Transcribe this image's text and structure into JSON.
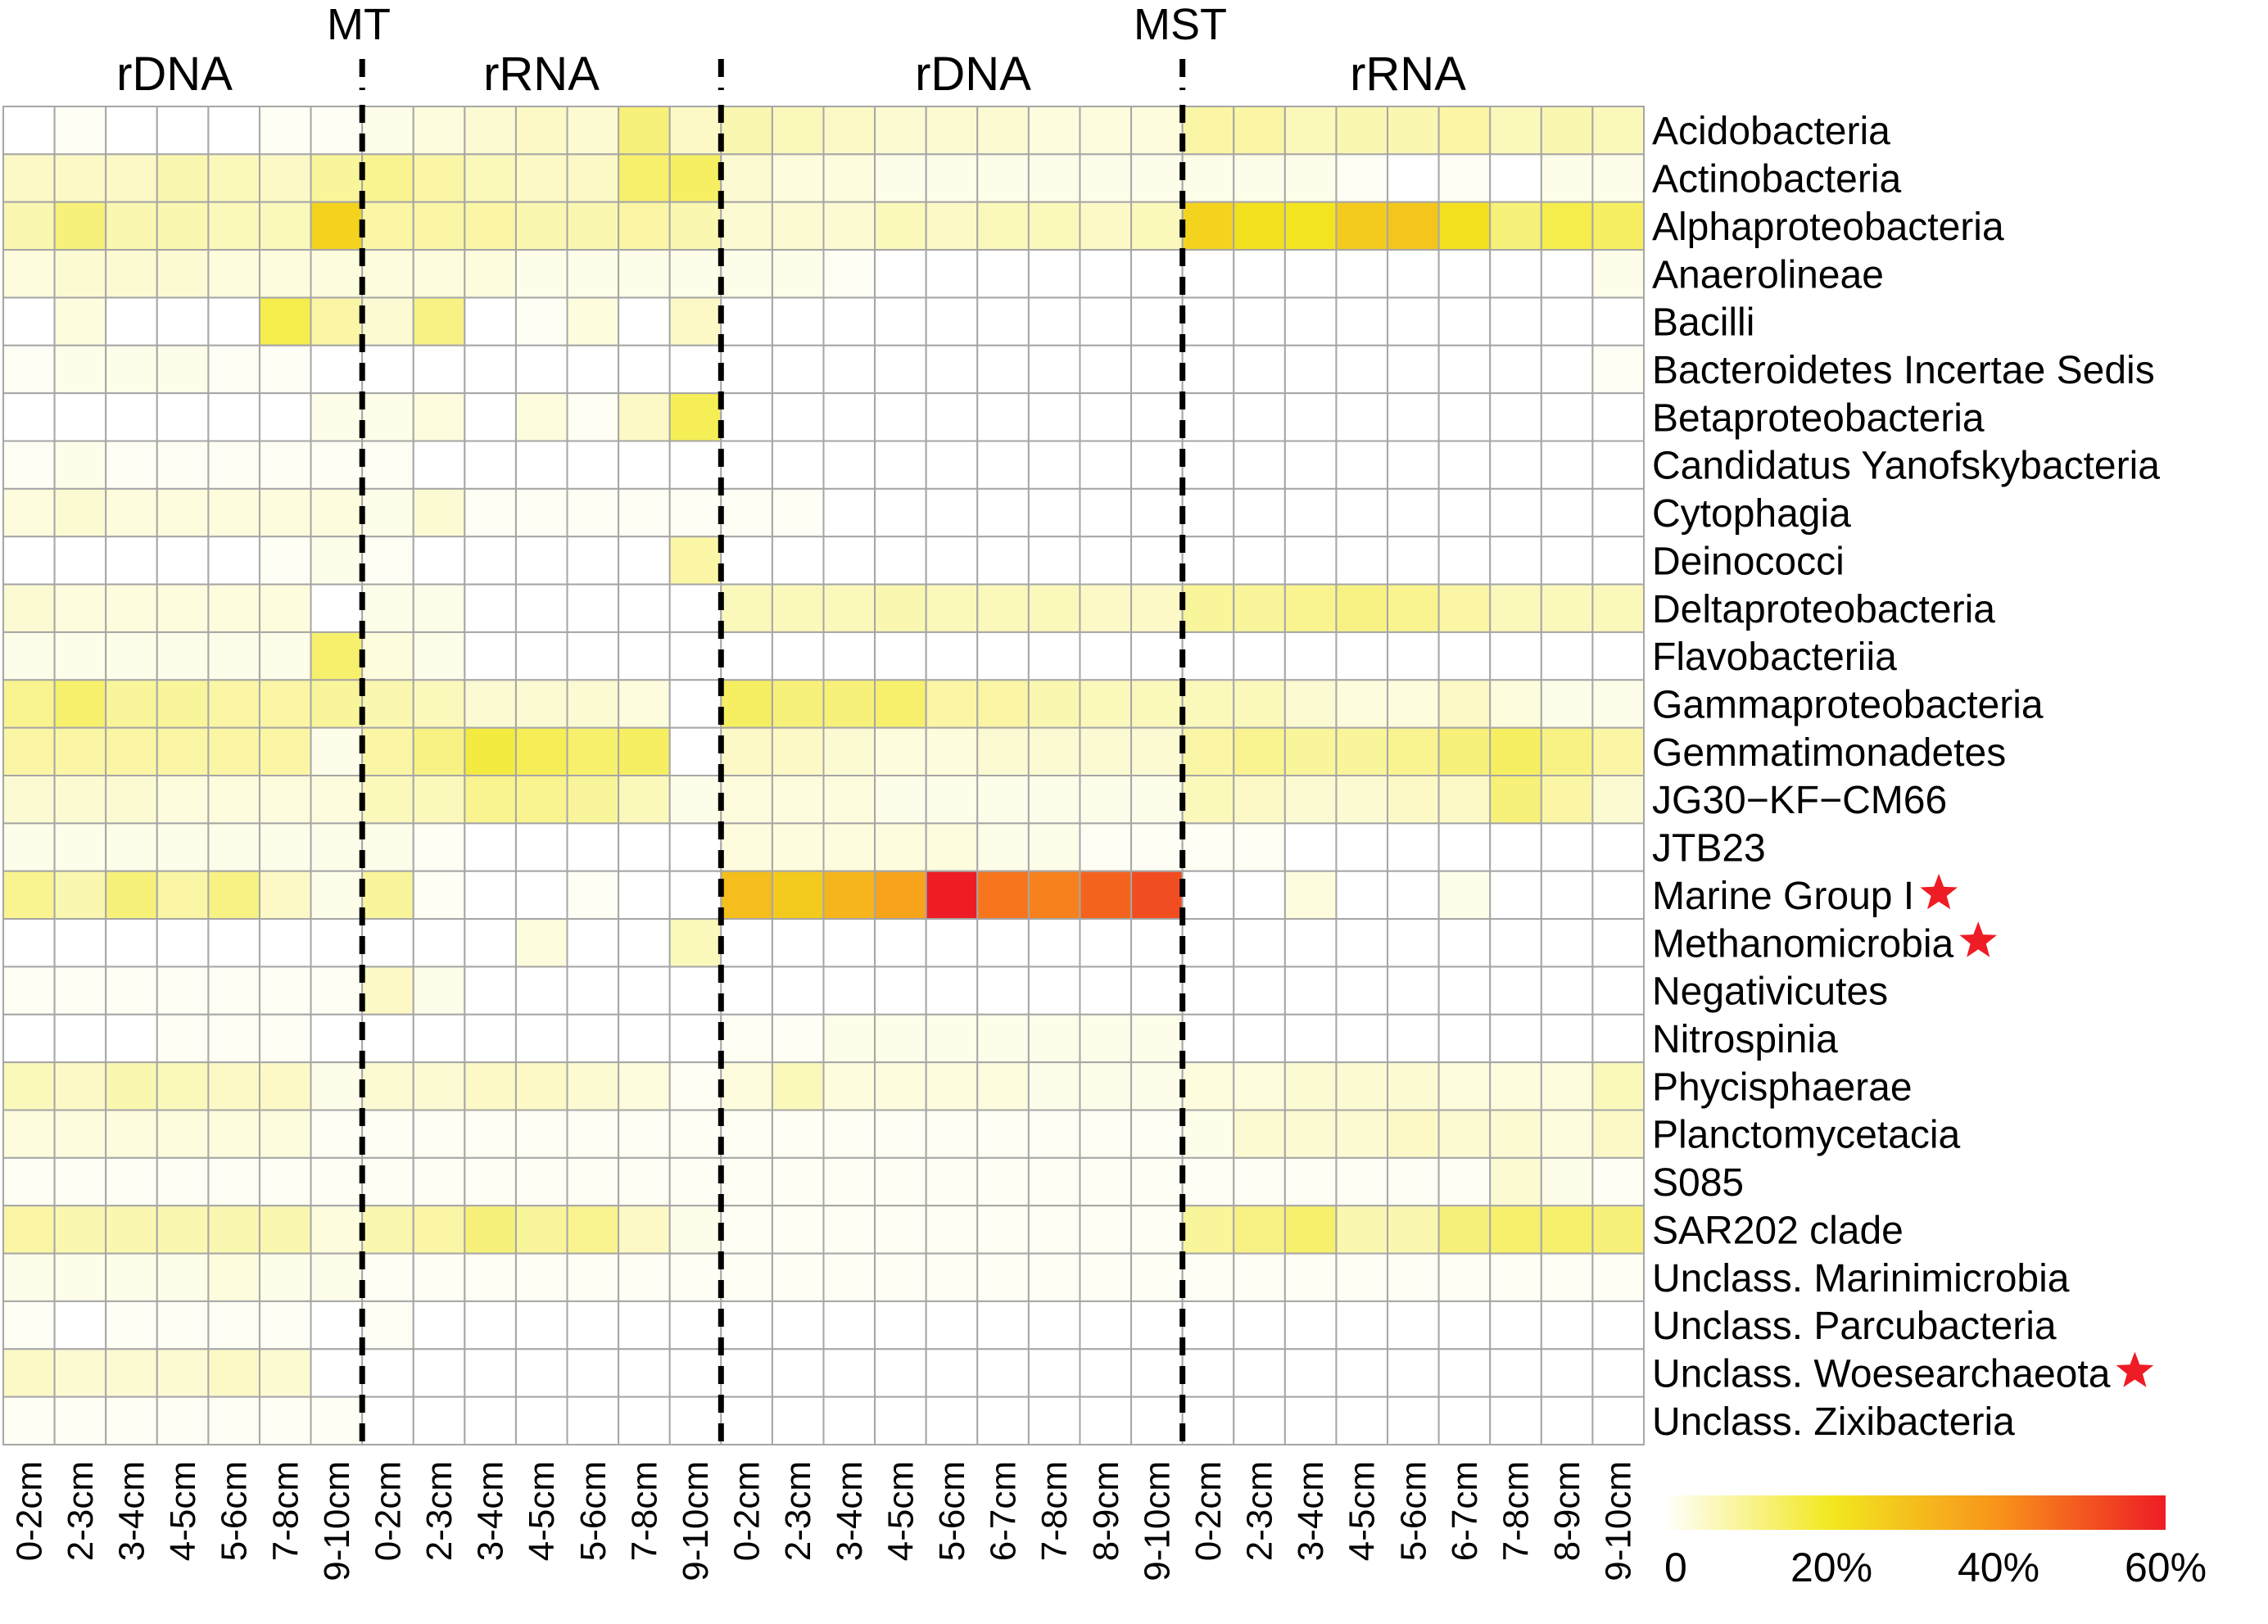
{
  "chart_data": {
    "type": "heatmap",
    "title": "",
    "groups": [
      {
        "site": "MT",
        "type": "rDNA",
        "columns": [
          "0-2cm",
          "2-3cm",
          "3-4cm",
          "4-5cm",
          "5-6cm",
          "7-8cm",
          "9-10cm"
        ]
      },
      {
        "site": "MT",
        "type": "rRNA",
        "columns": [
          "0-2cm",
          "2-3cm",
          "3-4cm",
          "4-5cm",
          "5-6cm",
          "7-8cm",
          "9-10cm"
        ]
      },
      {
        "site": "MST",
        "type": "rDNA",
        "columns": [
          "0-2cm",
          "2-3cm",
          "3-4cm",
          "4-5cm",
          "5-6cm",
          "6-7cm",
          "7-8cm",
          "8-9cm",
          "9-10cm"
        ]
      },
      {
        "site": "MST",
        "type": "rRNA",
        "columns": [
          "0-2cm",
          "2-3cm",
          "3-4cm",
          "4-5cm",
          "5-6cm",
          "6-7cm",
          "7-8cm",
          "8-9cm",
          "9-10cm"
        ]
      }
    ],
    "site_labels": [
      {
        "text": "MT"
      },
      {
        "text": "MST"
      }
    ],
    "type_labels": [
      {
        "text": "rDNA",
        "color": "#000000"
      },
      {
        "text": "rRNA",
        "color": "#e8191b"
      },
      {
        "text": "rDNA",
        "color": "#000000"
      },
      {
        "text": "rRNA",
        "color": "#e8191b"
      }
    ],
    "rows": [
      "Acidobacteria",
      "Actinobacteria",
      "Alphaproteobacteria",
      "Anaerolineae",
      "Bacilli",
      "Bacteroidetes Incertae Sedis",
      "Betaproteobacteria",
      "Candidatus Yanofskybacteria",
      "Cytophagia",
      "Deinococci",
      "Deltaproteobacteria",
      "Flavobacteriia",
      "Gammaproteobacteria",
      "Gemmatimonadetes",
      "JG30−KF−CM66",
      "JTB23",
      "Marine Group I",
      "Methanomicrobia",
      "Negativicutes",
      "Nitrospinia",
      "Phycisphaerae",
      "Planctomycetacia",
      "S085",
      "SAR202 clade",
      "Unclass. Marinimicrobia",
      "Unclass. Parcubacteria",
      "Unclass. Woesearchaeota",
      "Unclass. Zixibacteria"
    ],
    "starred_rows": [
      "Marine Group I",
      "Methanomicrobia",
      "Unclass. Woesearchaeota"
    ],
    "unit": "relative abundance (%)",
    "values": [
      [
        0,
        1,
        0,
        0,
        0,
        1,
        1,
        2,
        3,
        4,
        5,
        4,
        12,
        5,
        7,
        6,
        5,
        4,
        4,
        4,
        3,
        3,
        3,
        8,
        8,
        6,
        7,
        7,
        8,
        6,
        7,
        6
      ],
      [
        5,
        5,
        5,
        7,
        6,
        5,
        9,
        10,
        8,
        6,
        5,
        5,
        13,
        14,
        4,
        3,
        3,
        2,
        2,
        2,
        2,
        2,
        2,
        2,
        2,
        2,
        1,
        0,
        1,
        0,
        2,
        2
      ],
      [
        7,
        12,
        7,
        7,
        6,
        6,
        25,
        8,
        8,
        8,
        7,
        7,
        8,
        7,
        4,
        4,
        4,
        6,
        5,
        6,
        6,
        5,
        6,
        25,
        22,
        21,
        27,
        28,
        22,
        12,
        16,
        14
      ],
      [
        3,
        4,
        4,
        4,
        3,
        3,
        3,
        3,
        3,
        3,
        2,
        2,
        2,
        2,
        2,
        2,
        1,
        0,
        0,
        0,
        0,
        0,
        0,
        0,
        0,
        0,
        0,
        0,
        0,
        0,
        0,
        2
      ],
      [
        0,
        3,
        0,
        0,
        0,
        16,
        8,
        4,
        11,
        0,
        1,
        3,
        0,
        5,
        0,
        0,
        0,
        0,
        0,
        0,
        0,
        0,
        0,
        0,
        0,
        0,
        0,
        0,
        0,
        0,
        0,
        0
      ],
      [
        1,
        2,
        2,
        2,
        1,
        1,
        0,
        0,
        0,
        0,
        0,
        0,
        0,
        0,
        0,
        0,
        0,
        0,
        0,
        0,
        0,
        0,
        0,
        0,
        0,
        0,
        0,
        0,
        0,
        0,
        0,
        1
      ],
      [
        0,
        0,
        0,
        0,
        0,
        0,
        2,
        2,
        3,
        0,
        3,
        1,
        5,
        15,
        0,
        0,
        0,
        0,
        0,
        0,
        0,
        0,
        0,
        0,
        0,
        0,
        0,
        0,
        0,
        0,
        0,
        0
      ],
      [
        1,
        2,
        1,
        1,
        1,
        1,
        1,
        1,
        0,
        0,
        0,
        0,
        0,
        0,
        0,
        0,
        0,
        0,
        0,
        0,
        0,
        0,
        0,
        0,
        0,
        0,
        0,
        0,
        0,
        0,
        0,
        0
      ],
      [
        3,
        4,
        3,
        3,
        3,
        3,
        3,
        2,
        4,
        1,
        1,
        1,
        1,
        1,
        1,
        1,
        0,
        0,
        0,
        0,
        0,
        0,
        0,
        0,
        0,
        0,
        0,
        0,
        0,
        0,
        0,
        0
      ],
      [
        0,
        0,
        0,
        0,
        0,
        1,
        2,
        1,
        0,
        0,
        0,
        0,
        0,
        8,
        0,
        0,
        0,
        0,
        0,
        0,
        0,
        0,
        0,
        0,
        0,
        0,
        0,
        0,
        0,
        0,
        0,
        0
      ],
      [
        4,
        3,
        3,
        3,
        3,
        3,
        0,
        2,
        2,
        0,
        0,
        0,
        0,
        0,
        6,
        6,
        6,
        7,
        6,
        6,
        6,
        5,
        5,
        9,
        9,
        10,
        11,
        10,
        8,
        6,
        6,
        6
      ],
      [
        2,
        2,
        2,
        2,
        2,
        2,
        13,
        3,
        2,
        0,
        0,
        0,
        0,
        0,
        0,
        0,
        0,
        0,
        0,
        0,
        0,
        0,
        0,
        0,
        0,
        0,
        0,
        0,
        0,
        0,
        0,
        0
      ],
      [
        10,
        13,
        9,
        9,
        8,
        8,
        9,
        7,
        6,
        4,
        4,
        4,
        3,
        0,
        14,
        12,
        12,
        13,
        8,
        8,
        7,
        6,
        6,
        6,
        6,
        4,
        3,
        3,
        5,
        3,
        2,
        2
      ],
      [
        8,
        8,
        8,
        8,
        8,
        8,
        2,
        8,
        11,
        17,
        15,
        13,
        14,
        0,
        5,
        5,
        4,
        3,
        3,
        4,
        4,
        4,
        4,
        8,
        10,
        9,
        9,
        10,
        12,
        14,
        11,
        8
      ],
      [
        4,
        4,
        4,
        3,
        3,
        3,
        3,
        6,
        6,
        10,
        10,
        9,
        6,
        2,
        3,
        3,
        3,
        2,
        2,
        2,
        2,
        2,
        2,
        6,
        5,
        4,
        4,
        5,
        5,
        12,
        8,
        4
      ],
      [
        2,
        2,
        2,
        2,
        2,
        2,
        2,
        2,
        1,
        0,
        0,
        0,
        0,
        0,
        3,
        3,
        3,
        3,
        3,
        2,
        2,
        1,
        1,
        1,
        1,
        0,
        0,
        0,
        0,
        0,
        0,
        0
      ],
      [
        10,
        7,
        12,
        8,
        11,
        5,
        2,
        9,
        1,
        0,
        0,
        1,
        0,
        0,
        30,
        27,
        32,
        36,
        60,
        45,
        43,
        48,
        52,
        0,
        0,
        3,
        0,
        0,
        2,
        0,
        0,
        0
      ],
      [
        0,
        0,
        0,
        0,
        0,
        0,
        0,
        0,
        0,
        0,
        3,
        0,
        0,
        6,
        0,
        0,
        0,
        0,
        0,
        0,
        0,
        0,
        0,
        0,
        0,
        0,
        0,
        0,
        0,
        0,
        0,
        0
      ],
      [
        1,
        1,
        1,
        1,
        1,
        1,
        1,
        5,
        2,
        0,
        0,
        0,
        0,
        0,
        0,
        0,
        0,
        0,
        0,
        0,
        0,
        0,
        0,
        0,
        0,
        0,
        0,
        0,
        0,
        0,
        0,
        0
      ],
      [
        0,
        0,
        0,
        1,
        1,
        1,
        0,
        0,
        0,
        0,
        0,
        0,
        0,
        0,
        1,
        1,
        2,
        2,
        2,
        2,
        2,
        2,
        2,
        0,
        0,
        0,
        0,
        0,
        0,
        0,
        0,
        0
      ],
      [
        6,
        5,
        7,
        6,
        5,
        5,
        2,
        4,
        4,
        5,
        5,
        4,
        3,
        1,
        3,
        6,
        3,
        3,
        3,
        3,
        2,
        2,
        2,
        3,
        3,
        4,
        4,
        4,
        3,
        3,
        3,
        6
      ],
      [
        3,
        3,
        3,
        3,
        3,
        3,
        1,
        1,
        1,
        1,
        1,
        1,
        1,
        1,
        1,
        1,
        1,
        1,
        1,
        1,
        1,
        1,
        1,
        2,
        4,
        4,
        4,
        5,
        4,
        4,
        3,
        5
      ],
      [
        1,
        1,
        1,
        1,
        1,
        1,
        1,
        1,
        1,
        1,
        1,
        1,
        1,
        1,
        1,
        1,
        1,
        1,
        1,
        1,
        1,
        1,
        1,
        1,
        1,
        1,
        1,
        1,
        1,
        4,
        2,
        1
      ],
      [
        8,
        7,
        7,
        7,
        7,
        7,
        3,
        7,
        8,
        12,
        9,
        10,
        5,
        2,
        1,
        1,
        1,
        1,
        1,
        1,
        1,
        1,
        1,
        9,
        11,
        13,
        7,
        7,
        12,
        13,
        13,
        12
      ],
      [
        2,
        2,
        2,
        2,
        3,
        2,
        2,
        1,
        1,
        1,
        1,
        1,
        1,
        1,
        1,
        1,
        1,
        1,
        1,
        1,
        1,
        1,
        1,
        1,
        1,
        1,
        1,
        1,
        1,
        1,
        1,
        1
      ],
      [
        1,
        0,
        1,
        1,
        1,
        1,
        0,
        1,
        0,
        0,
        0,
        0,
        0,
        0,
        0,
        0,
        0,
        0,
        0,
        0,
        0,
        0,
        0,
        0,
        0,
        0,
        0,
        0,
        0,
        0,
        0,
        0
      ],
      [
        5,
        4,
        4,
        4,
        5,
        4,
        0,
        0,
        0,
        0,
        0,
        0,
        0,
        0,
        0,
        0,
        0,
        0,
        0,
        0,
        0,
        0,
        0,
        0,
        0,
        0,
        0,
        0,
        0,
        0,
        0,
        0
      ],
      [
        1,
        1,
        1,
        1,
        1,
        1,
        1,
        0,
        0,
        0,
        0,
        0,
        0,
        0,
        0,
        0,
        0,
        0,
        0,
        0,
        0,
        0,
        0,
        0,
        0,
        0,
        0,
        0,
        0,
        0,
        0,
        0
      ]
    ],
    "colorbar": {
      "min": 0,
      "max": 60,
      "ticks": [
        0,
        20,
        40,
        60
      ],
      "tick_labels": [
        "0",
        "20%",
        "40%",
        "60%"
      ],
      "stops": [
        "#ffffff",
        "#f2e81f",
        "#f8931a",
        "#ee1c25"
      ]
    }
  }
}
